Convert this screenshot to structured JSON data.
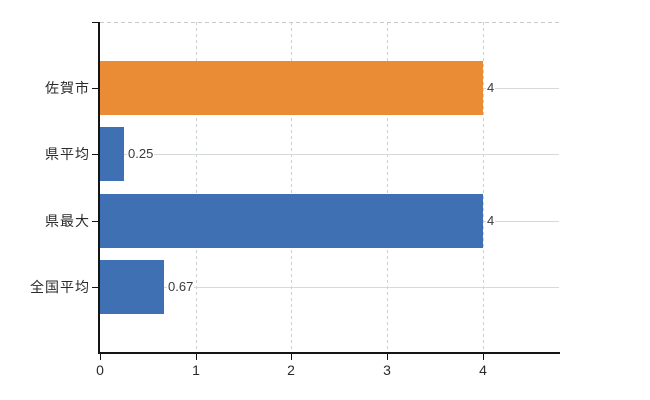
{
  "chart_data": {
    "type": "bar",
    "orientation": "horizontal",
    "title": "",
    "xlabel": "",
    "ylabel": "",
    "categories": [
      "佐賀市",
      "県平均",
      "県最大",
      "全国平均"
    ],
    "values": [
      4,
      0.25,
      4,
      0.67
    ],
    "value_labels": [
      "4",
      "0.25",
      "4",
      "0.67"
    ],
    "x_tick_labels": [
      "0",
      "1",
      "2",
      "3",
      "4"
    ],
    "x_tick_values": [
      0,
      1,
      2,
      3,
      4
    ],
    "xlim": [
      0,
      4.8
    ],
    "grid": true,
    "legend": false,
    "colors": {
      "bar_colors": [
        "#EA8B35",
        "#4070B4",
        "#4070B4",
        "#4070B4"
      ],
      "background": "#FFFFFF",
      "axis": "#141414",
      "gridline_horizontal": "#D6DAD6",
      "gridline_vertical": "#CDD1CD",
      "dashed_top_border": "#C8CCC8",
      "category_label_text": "#2B2B2B",
      "value_label_text": "#3A3A3A"
    }
  }
}
